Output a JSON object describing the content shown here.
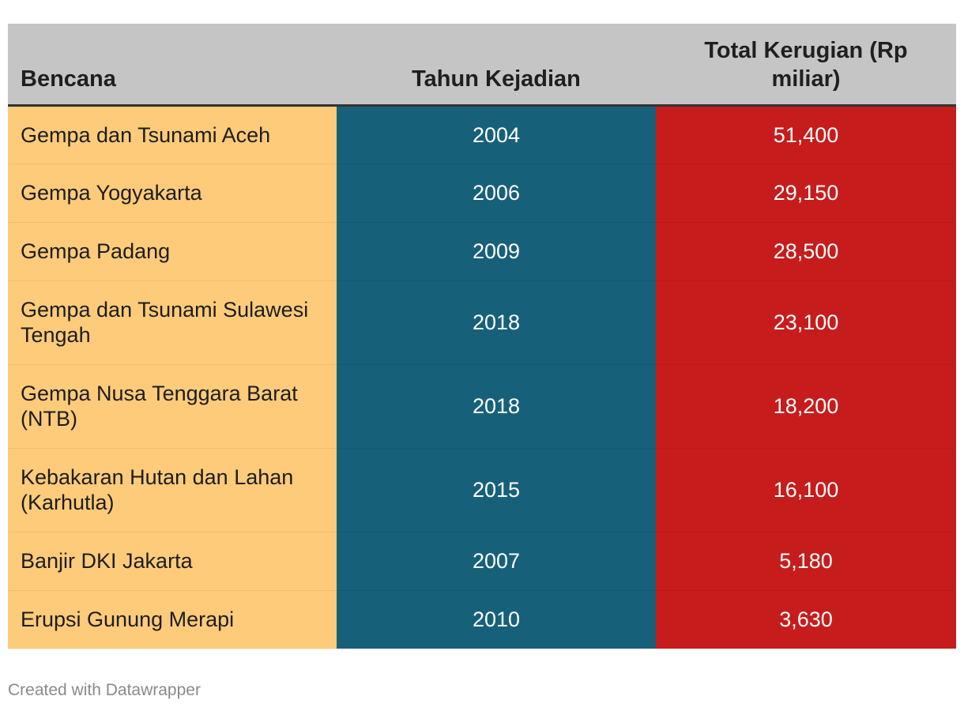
{
  "table": {
    "headers": [
      "Bencana",
      "Tahun Kejadian",
      "Total Kerugian (Rp miliar)"
    ],
    "rows": [
      {
        "bencana": "Gempa dan Tsunami Aceh",
        "tahun": "2004",
        "kerugian": "51,400"
      },
      {
        "bencana": "Gempa Yogyakarta",
        "tahun": "2006",
        "kerugian": "29,150"
      },
      {
        "bencana": "Gempa Padang",
        "tahun": "2009",
        "kerugian": "28,500"
      },
      {
        "bencana": "Gempa dan Tsunami Sulawesi Tengah",
        "tahun": "2018",
        "kerugian": "23,100"
      },
      {
        "bencana": "Gempa Nusa Tenggara Barat (NTB)",
        "tahun": "2018",
        "kerugian": "18,200"
      },
      {
        "bencana": "Kebakaran Hutan dan Lahan (Karhutla)",
        "tahun": "2015",
        "kerugian": "16,100"
      },
      {
        "bencana": "Banjir DKI Jakarta",
        "tahun": "2007",
        "kerugian": "5,180"
      },
      {
        "bencana": "Erupsi Gunung Merapi",
        "tahun": "2010",
        "kerugian": "3,630"
      }
    ]
  },
  "chart_data": {
    "type": "table",
    "columns": [
      "Bencana",
      "Tahun Kejadian",
      "Total Kerugian (Rp miliar)"
    ],
    "rows": [
      [
        "Gempa dan Tsunami Aceh",
        2004,
        51400
      ],
      [
        "Gempa Yogyakarta",
        2006,
        29150
      ],
      [
        "Gempa Padang",
        2009,
        28500
      ],
      [
        "Gempa dan Tsunami Sulawesi Tengah",
        2018,
        23100
      ],
      [
        "Gempa Nusa Tenggara Barat (NTB)",
        2018,
        18200
      ],
      [
        "Kebakaran Hutan dan Lahan (Karhutla)",
        2015,
        16100
      ],
      [
        "Banjir DKI Jakarta",
        2007,
        5180
      ],
      [
        "Erupsi Gunung Merapi",
        2010,
        3630
      ]
    ]
  },
  "colors": {
    "header_bg": "#c5c5c5",
    "name_col": "#fdcb7a",
    "year_col": "#17607a",
    "loss_col": "#c71c1c"
  },
  "footer": {
    "credit": "Created with Datawrapper"
  }
}
